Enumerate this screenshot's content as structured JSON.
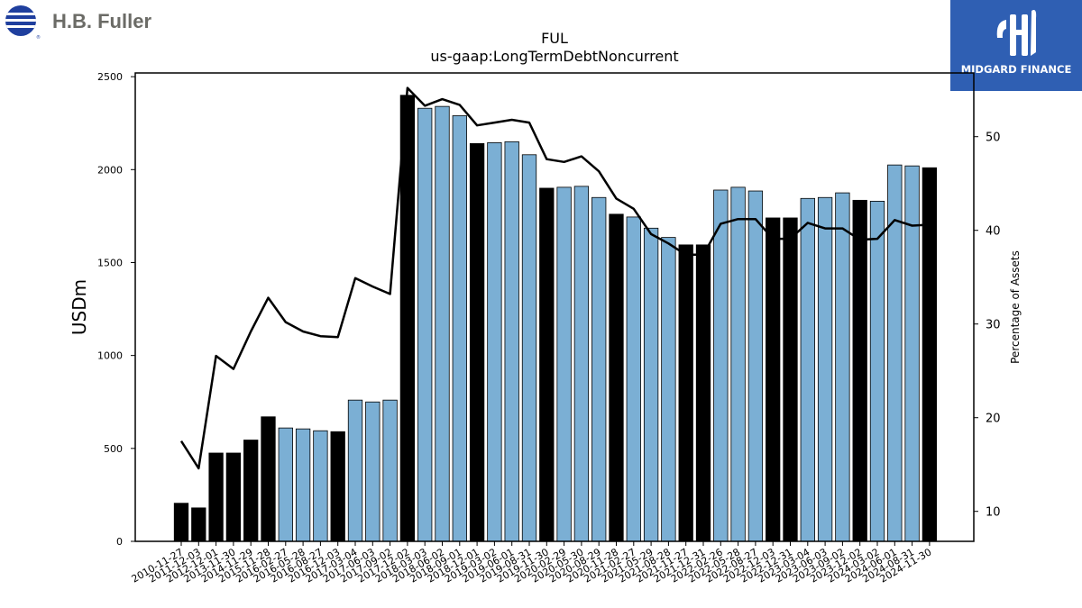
{
  "header": {
    "company_logo_text": "H.B. Fuller",
    "brand_logo_text": "MIDGARD FINANCE"
  },
  "colors": {
    "bar_fiscal_year_end": "#000000",
    "bar_quarter": "#7bafd4",
    "line": "#000000",
    "brand": "#2f5fb3",
    "company_logo_blue": "#1f3f9e",
    "company_logo_text": "#6b6b66"
  },
  "chart_data": {
    "type": "bar",
    "title": "FUL",
    "subtitle": "us-gaap:LongTermDebtNoncurrent",
    "ylabel": "USDm",
    "y2label": "Percentage of Assets",
    "ylim": [
      0,
      2520
    ],
    "y2lim": [
      6.8,
      56.8
    ],
    "yticks": [
      0,
      500,
      1000,
      1500,
      2000,
      2500
    ],
    "y2ticks": [
      10,
      20,
      30,
      40,
      50
    ],
    "grid": false,
    "legend": "none",
    "categories": [
      "2010-11-27",
      "2011-12-03",
      "2012-12-01",
      "2013-11-30",
      "2014-11-29",
      "2015-11-28",
      "2016-02-27",
      "2016-05-28",
      "2016-08-27",
      "2016-12-03",
      "2017-03-04",
      "2017-06-03",
      "2017-09-02",
      "2017-12-02",
      "2018-03-03",
      "2018-06-02",
      "2018-09-01",
      "2018-12-01",
      "2019-03-02",
      "2019-06-01",
      "2019-08-31",
      "2019-11-30",
      "2020-02-29",
      "2020-05-30",
      "2020-08-29",
      "2020-11-28",
      "2021-02-27",
      "2021-05-29",
      "2021-08-28",
      "2021-11-27",
      "2021-12-31",
      "2022-02-26",
      "2022-05-28",
      "2022-08-27",
      "2022-12-03",
      "2022-12-31",
      "2023-03-04",
      "2023-06-03",
      "2023-09-02",
      "2023-12-02",
      "2024-03-02",
      "2024-06-01",
      "2024-08-31",
      "2024-11-30"
    ],
    "series": [
      {
        "type": "bar",
        "axis": "left",
        "values": [
          205,
          180,
          475,
          475,
          545,
          670,
          610,
          605,
          595,
          590,
          760,
          750,
          760,
          2400,
          2330,
          2340,
          2290,
          2140,
          2145,
          2150,
          2080,
          1900,
          1905,
          1910,
          1850,
          1760,
          1745,
          1685,
          1635,
          1595,
          1595,
          1890,
          1905,
          1885,
          1740,
          1740,
          1845,
          1850,
          1875,
          1835,
          1830,
          2025,
          2020,
          2010
        ],
        "fiscal_year_end": [
          true,
          true,
          true,
          true,
          true,
          true,
          false,
          false,
          false,
          true,
          false,
          false,
          false,
          true,
          false,
          false,
          false,
          true,
          false,
          false,
          false,
          true,
          false,
          false,
          false,
          true,
          false,
          false,
          false,
          true,
          true,
          false,
          false,
          false,
          true,
          true,
          false,
          false,
          false,
          true,
          false,
          false,
          false,
          true
        ]
      },
      {
        "type": "line",
        "axis": "right",
        "values": [
          17.5,
          14.6,
          26.6,
          25.2,
          29.2,
          32.8,
          30.2,
          29.2,
          28.7,
          28.6,
          34.9,
          34.0,
          33.2,
          55.2,
          53.3,
          54.0,
          53.4,
          51.2,
          51.5,
          51.8,
          51.5,
          47.6,
          47.3,
          47.9,
          46.3,
          43.4,
          42.3,
          39.6,
          38.6,
          37.4,
          37.4,
          40.7,
          41.2,
          41.2,
          39.1,
          39.1,
          40.8,
          40.2,
          40.2,
          39.0,
          39.1,
          41.1,
          40.5,
          40.6
        ]
      }
    ]
  }
}
